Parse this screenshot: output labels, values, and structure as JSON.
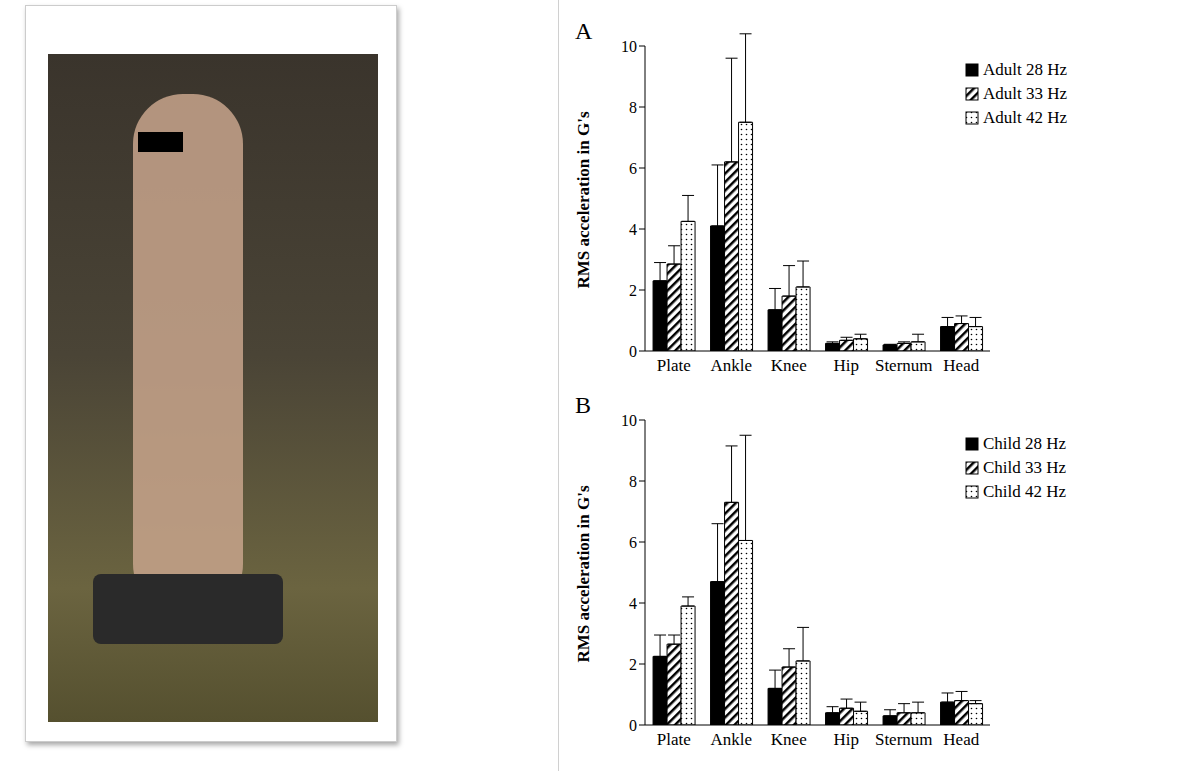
{
  "chart_data": [
    {
      "type": "bar",
      "title": "A",
      "y_label": "RMS acceleration in G's",
      "categories": [
        "Plate",
        "Ankle",
        "Knee",
        "Hip",
        "Sternum",
        "Head"
      ],
      "series": [
        {
          "name": "Adult 28 Hz",
          "color": "#000000",
          "values": [
            2.3,
            4.1,
            1.35,
            0.25,
            0.2,
            0.8
          ],
          "error": [
            0.6,
            2.0,
            0.7,
            0.05,
            0.02,
            0.3
          ]
        },
        {
          "name": "Adult 33 Hz",
          "color": "#000000",
          "values": [
            2.85,
            6.2,
            1.8,
            0.35,
            0.25,
            0.9
          ],
          "error": [
            0.6,
            3.4,
            1.0,
            0.1,
            0.05,
            0.25
          ]
        },
        {
          "name": "Adult 42 Hz",
          "color": "#000000",
          "values": [
            4.25,
            7.5,
            2.1,
            0.4,
            0.3,
            0.8
          ],
          "error": [
            0.85,
            2.9,
            0.85,
            0.15,
            0.25,
            0.3
          ]
        }
      ],
      "ylim": [
        0,
        10
      ],
      "yticks": [
        0,
        2,
        4,
        6,
        8,
        10
      ],
      "legend": "upper right"
    },
    {
      "type": "bar",
      "title": "B",
      "y_label": "RMS acceleration in G's",
      "categories": [
        "Plate",
        "Ankle",
        "Knee",
        "Hip",
        "Sternum",
        "Head"
      ],
      "series": [
        {
          "name": "Child 28 Hz",
          "color": "#000000",
          "values": [
            2.25,
            4.7,
            1.2,
            0.4,
            0.3,
            0.75
          ],
          "error": [
            0.7,
            1.9,
            0.6,
            0.2,
            0.2,
            0.3
          ]
        },
        {
          "name": "Child 33 Hz",
          "color": "#000000",
          "values": [
            2.65,
            7.3,
            1.9,
            0.55,
            0.4,
            0.8
          ],
          "error": [
            0.3,
            1.85,
            0.6,
            0.3,
            0.3,
            0.3
          ]
        },
        {
          "name": "Child 42 Hz",
          "color": "#000000",
          "values": [
            3.9,
            6.05,
            2.1,
            0.45,
            0.4,
            0.7
          ],
          "error": [
            0.3,
            3.45,
            1.1,
            0.3,
            0.35,
            0.1
          ]
        }
      ],
      "ylim": [
        0,
        10
      ],
      "yticks": [
        0,
        2,
        4,
        6,
        8,
        10
      ],
      "legend": "upper right"
    }
  ]
}
